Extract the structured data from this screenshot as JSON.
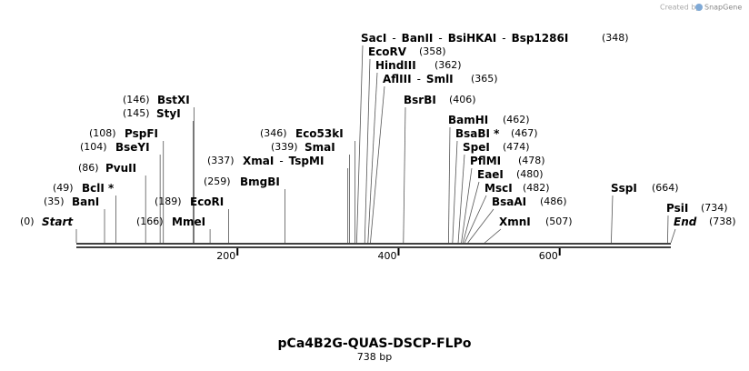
{
  "header": {
    "credit": "Created by",
    "brand": "SnapGene"
  },
  "map": {
    "title": "pCa4B2G-QUAS-DSCP-FLPo",
    "length_label": "738 bp",
    "length": 738,
    "separator": "-",
    "ticks": [
      200,
      400,
      600
    ],
    "sites": [
      {
        "names": [
          "Start"
        ],
        "position": {
          "value": 0,
          "label": "(0)"
        }
      },
      {
        "names": [
          "BanI"
        ],
        "position": {
          "value": 35,
          "label": "(35)"
        }
      },
      {
        "names": [
          "BclI *"
        ],
        "position": {
          "value": 49,
          "label": "(49)"
        }
      },
      {
        "names": [
          "PvuII"
        ],
        "position": {
          "value": 86,
          "label": "(86)"
        }
      },
      {
        "names": [
          "BseYI"
        ],
        "position": {
          "value": 104,
          "label": "(104)"
        }
      },
      {
        "names": [
          "PspFI"
        ],
        "position": {
          "value": 108,
          "label": "(108)"
        }
      },
      {
        "names": [
          "StyI"
        ],
        "position": {
          "value": 145,
          "label": "(145)"
        }
      },
      {
        "names": [
          "BstXI"
        ],
        "position": {
          "value": 146,
          "label": "(146)"
        }
      },
      {
        "names": [
          "MmeI"
        ],
        "position": {
          "value": 166,
          "label": "(166)"
        }
      },
      {
        "names": [
          "EcoRI"
        ],
        "position": {
          "value": 189,
          "label": "(189)"
        }
      },
      {
        "names": [
          "BmgBI"
        ],
        "position": {
          "value": 259,
          "label": "(259)"
        }
      },
      {
        "names": [
          "XmaI",
          "TspMI"
        ],
        "position": {
          "value": 337,
          "label": "(337)"
        }
      },
      {
        "names": [
          "SmaI"
        ],
        "position": {
          "value": 339,
          "label": "(339)"
        }
      },
      {
        "names": [
          "Eco53kI"
        ],
        "position": {
          "value": 346,
          "label": "(346)"
        }
      },
      {
        "names": [
          "SacI",
          "BanII",
          "BsiHKAI",
          "Bsp1286I"
        ],
        "position": {
          "value": 348,
          "label": "(348)"
        }
      },
      {
        "names": [
          "EcoRV"
        ],
        "position": {
          "value": 358,
          "label": "(358)"
        }
      },
      {
        "names": [
          "HindIII"
        ],
        "position": {
          "value": 362,
          "label": "(362)"
        }
      },
      {
        "names": [
          "AflIII",
          "SmlI"
        ],
        "position": {
          "value": 365,
          "label": "(365)"
        }
      },
      {
        "names": [
          "BsrBI"
        ],
        "position": {
          "value": 406,
          "label": "(406)"
        }
      },
      {
        "names": [
          "BamHI"
        ],
        "position": {
          "value": 462,
          "label": "(462)"
        }
      },
      {
        "names": [
          "BsaBI *"
        ],
        "position": {
          "value": 467,
          "label": "(467)"
        }
      },
      {
        "names": [
          "SpeI"
        ],
        "position": {
          "value": 474,
          "label": "(474)"
        }
      },
      {
        "names": [
          "PflMI"
        ],
        "position": {
          "value": 478,
          "label": "(478)"
        }
      },
      {
        "names": [
          "EaeI"
        ],
        "position": {
          "value": 480,
          "label": "(480)"
        }
      },
      {
        "names": [
          "MscI"
        ],
        "position": {
          "value": 482,
          "label": "(482)"
        }
      },
      {
        "names": [
          "BsaAI"
        ],
        "position": {
          "value": 486,
          "label": "(486)"
        }
      },
      {
        "names": [
          "XmnI"
        ],
        "position": {
          "value": 507,
          "label": "(507)"
        }
      },
      {
        "names": [
          "SspI"
        ],
        "position": {
          "value": 664,
          "label": "(664)"
        }
      },
      {
        "names": [
          "PsiI"
        ],
        "position": {
          "value": 734,
          "label": "(734)"
        }
      },
      {
        "names": [
          "End"
        ],
        "position": {
          "value": 738,
          "label": "(738)"
        }
      }
    ]
  }
}
